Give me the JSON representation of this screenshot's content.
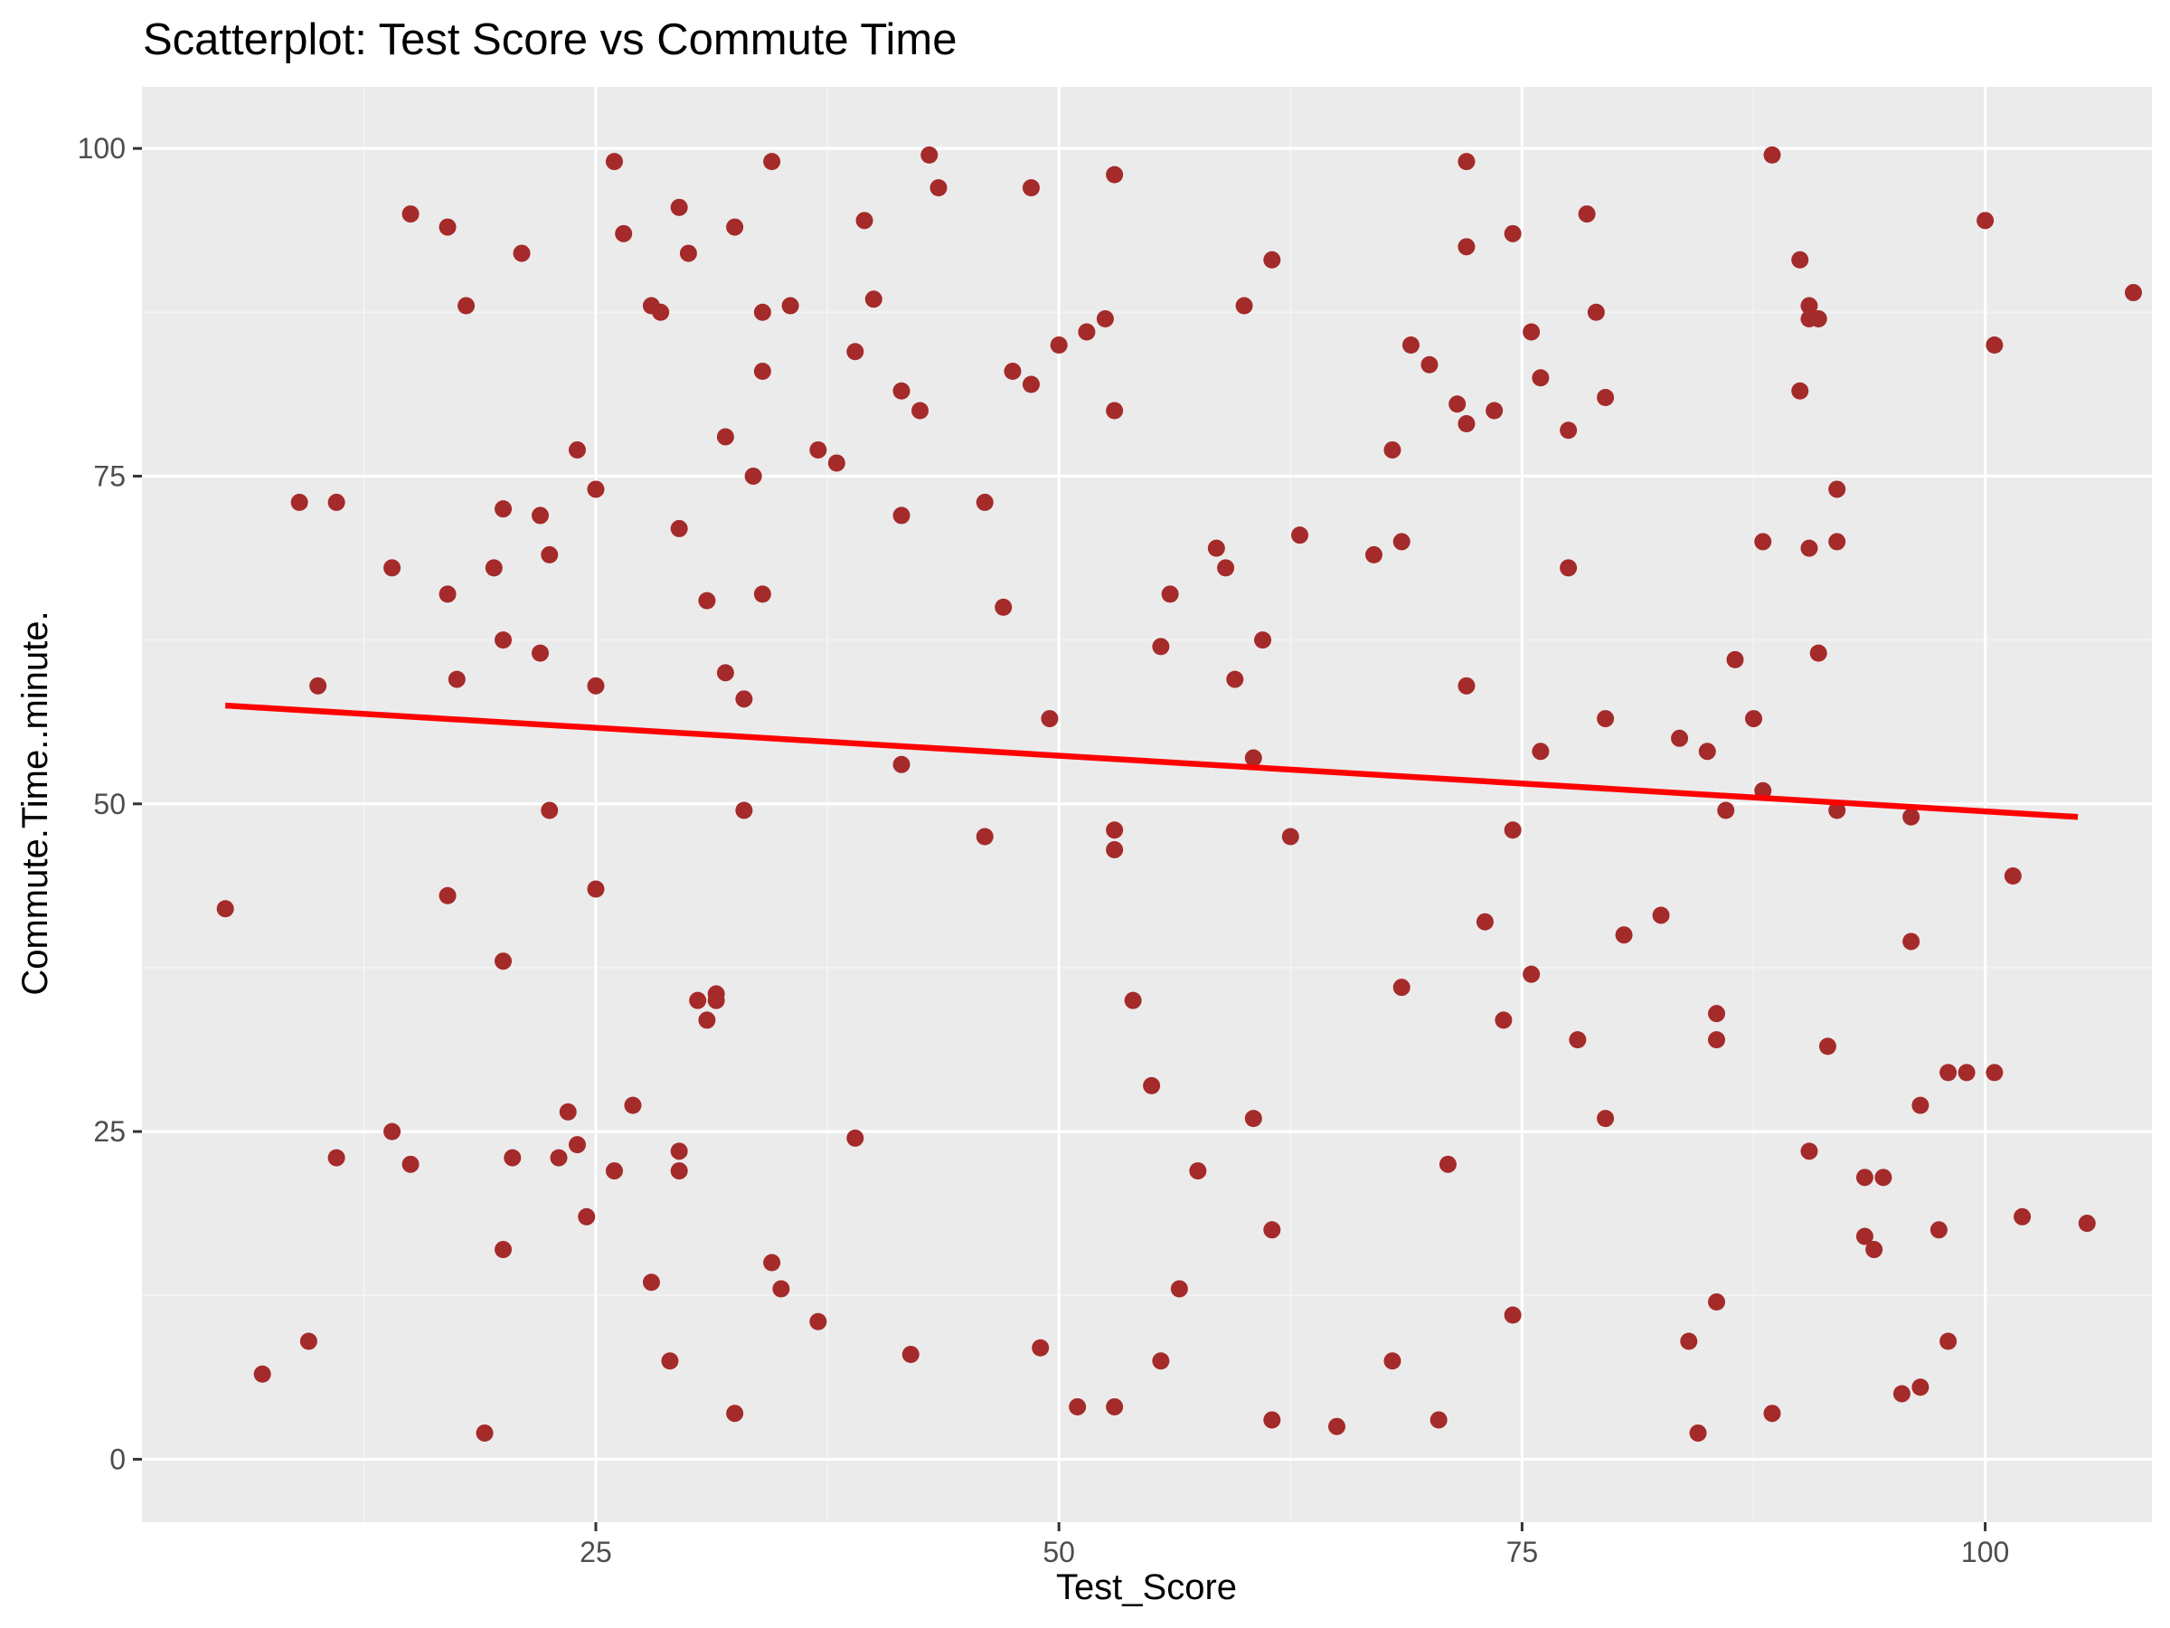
{
  "chart_data": {
    "type": "scatter",
    "title": "Scatterplot: Test Score vs Commute Time",
    "xlabel": "Test_Score",
    "ylabel": "Commute.Time..minute.",
    "xlim": [
      0.5,
      109.0
    ],
    "ylim": [
      -4.8,
      104.7
    ],
    "x_ticks": [
      25,
      50,
      75,
      100
    ],
    "x_tick_labels": [
      "25",
      "50",
      "75",
      "100"
    ],
    "y_ticks": [
      0,
      25,
      50,
      75,
      100
    ],
    "y_tick_labels": [
      "0",
      "25",
      "50",
      "75",
      "100"
    ],
    "grid": true,
    "legend": "none",
    "colors": {
      "panel": "#ebebeb",
      "grid_major": "#ffffff",
      "grid_minor": "#f4f4f4",
      "point": "#a52a2a",
      "trend": "#ff0000",
      "tick": "#333333"
    },
    "trend_line": {
      "x": [
        5.0,
        105.0
      ],
      "y": [
        57.5,
        49.0
      ]
    },
    "points": [
      [
        5,
        42
      ],
      [
        7,
        6.5
      ],
      [
        9,
        73
      ],
      [
        9.5,
        9
      ],
      [
        10,
        59
      ],
      [
        11,
        73
      ],
      [
        11,
        23
      ],
      [
        14,
        25
      ],
      [
        14,
        68
      ],
      [
        15,
        95
      ],
      [
        15,
        22.5
      ],
      [
        17,
        43
      ],
      [
        17,
        66
      ],
      [
        17,
        94
      ],
      [
        17.5,
        59.5
      ],
      [
        18,
        88
      ],
      [
        19,
        2
      ],
      [
        19.5,
        68
      ],
      [
        20,
        16
      ],
      [
        20,
        38
      ],
      [
        20,
        72.5
      ],
      [
        20,
        62.5
      ],
      [
        20.5,
        23
      ],
      [
        21,
        92
      ],
      [
        22,
        72
      ],
      [
        22,
        61.5
      ],
      [
        22.5,
        49.5
      ],
      [
        22.5,
        69
      ],
      [
        23,
        23
      ],
      [
        23.5,
        26.5
      ],
      [
        24,
        77
      ],
      [
        24,
        24
      ],
      [
        24.5,
        18.5
      ],
      [
        25,
        74
      ],
      [
        25,
        59
      ],
      [
        25,
        43.5
      ],
      [
        26,
        99
      ],
      [
        26,
        22
      ],
      [
        26.5,
        93.5
      ],
      [
        27,
        27
      ],
      [
        28,
        88
      ],
      [
        28,
        13.5
      ],
      [
        28.5,
        87.5
      ],
      [
        29,
        7.5
      ],
      [
        29.5,
        95.5
      ],
      [
        29.5,
        23.5
      ],
      [
        29.5,
        22
      ],
      [
        29.5,
        71
      ],
      [
        30,
        92
      ],
      [
        30.5,
        35
      ],
      [
        31,
        65.5
      ],
      [
        31,
        33.5
      ],
      [
        31.5,
        35.5
      ],
      [
        31.5,
        35
      ],
      [
        32,
        60
      ],
      [
        32,
        78
      ],
      [
        32.5,
        94
      ],
      [
        32.5,
        3.5
      ],
      [
        33,
        49.5
      ],
      [
        33,
        58
      ],
      [
        33.5,
        75
      ],
      [
        34,
        87.5
      ],
      [
        34,
        83
      ],
      [
        34,
        66
      ],
      [
        34.5,
        15
      ],
      [
        34.5,
        99
      ],
      [
        35,
        13
      ],
      [
        35.5,
        88
      ],
      [
        37,
        77
      ],
      [
        37,
        10.5
      ],
      [
        38,
        76
      ],
      [
        39,
        24.5
      ],
      [
        39,
        84.5
      ],
      [
        39.5,
        94.5
      ],
      [
        40,
        88.5
      ],
      [
        41.5,
        81.5
      ],
      [
        41.5,
        53
      ],
      [
        41.5,
        72
      ],
      [
        42,
        8
      ],
      [
        42.5,
        80
      ],
      [
        43,
        99.5
      ],
      [
        43.5,
        97
      ],
      [
        46,
        73
      ],
      [
        46,
        47.5
      ],
      [
        47,
        65
      ],
      [
        47.5,
        83
      ],
      [
        48.5,
        97
      ],
      [
        48.5,
        82
      ],
      [
        49,
        8.5
      ],
      [
        49.5,
        56.5
      ],
      [
        50,
        85
      ],
      [
        51,
        4
      ],
      [
        51.5,
        86
      ],
      [
        52.5,
        87
      ],
      [
        53,
        80
      ],
      [
        53,
        48
      ],
      [
        53,
        98
      ],
      [
        53,
        4
      ],
      [
        53,
        46.5
      ],
      [
        54,
        35
      ],
      [
        55,
        28.5
      ],
      [
        55.5,
        7.5
      ],
      [
        55.5,
        62
      ],
      [
        56,
        66
      ],
      [
        56.5,
        13
      ],
      [
        57.5,
        22
      ],
      [
        58.5,
        69.5
      ],
      [
        59,
        68
      ],
      [
        59.5,
        59.5
      ],
      [
        60,
        88
      ],
      [
        60.5,
        26
      ],
      [
        60.5,
        53.5
      ],
      [
        61,
        62.5
      ],
      [
        61.5,
        17.5
      ],
      [
        61.5,
        91.5
      ],
      [
        61.5,
        3
      ],
      [
        62.5,
        47.5
      ],
      [
        63,
        70.5
      ],
      [
        65,
        2.5
      ],
      [
        67,
        69
      ],
      [
        68,
        77
      ],
      [
        68,
        7.5
      ],
      [
        68.5,
        70
      ],
      [
        68.5,
        36
      ],
      [
        69,
        85
      ],
      [
        70,
        83.5
      ],
      [
        70.5,
        3
      ],
      [
        71,
        22.5
      ],
      [
        71.5,
        80.5
      ],
      [
        72,
        59
      ],
      [
        72,
        79
      ],
      [
        72,
        92.5
      ],
      [
        72,
        99
      ],
      [
        73,
        41
      ],
      [
        73.5,
        80
      ],
      [
        74,
        33.5
      ],
      [
        74.5,
        93.5
      ],
      [
        74.5,
        48
      ],
      [
        74.5,
        11
      ],
      [
        75.5,
        86
      ],
      [
        75.5,
        37
      ],
      [
        76,
        54
      ],
      [
        76,
        82.5
      ],
      [
        77.5,
        78.5
      ],
      [
        77.5,
        68
      ],
      [
        78,
        32
      ],
      [
        78.5,
        95
      ],
      [
        79,
        87.5
      ],
      [
        79.5,
        56.5
      ],
      [
        79.5,
        81
      ],
      [
        79.5,
        26
      ],
      [
        80.5,
        40
      ],
      [
        82.5,
        41.5
      ],
      [
        83.5,
        55
      ],
      [
        84,
        9
      ],
      [
        84.5,
        2
      ],
      [
        85,
        54
      ],
      [
        85.5,
        34
      ],
      [
        85.5,
        12
      ],
      [
        85.5,
        32
      ],
      [
        86,
        49.5
      ],
      [
        86.5,
        61
      ],
      [
        87.5,
        56.5
      ],
      [
        88,
        51
      ],
      [
        88,
        70
      ],
      [
        88.5,
        99.5
      ],
      [
        88.5,
        3.5
      ],
      [
        90,
        81.5
      ],
      [
        90,
        91.5
      ],
      [
        90.5,
        23.5
      ],
      [
        90.5,
        69.5
      ],
      [
        90.5,
        87
      ],
      [
        90.5,
        88
      ],
      [
        91,
        61.5
      ],
      [
        91,
        87
      ],
      [
        91.5,
        31.5
      ],
      [
        92,
        70
      ],
      [
        92,
        74
      ],
      [
        92,
        49.5
      ],
      [
        93.5,
        17
      ],
      [
        93.5,
        21.5
      ],
      [
        94,
        16
      ],
      [
        94.5,
        21.5
      ],
      [
        95.5,
        5
      ],
      [
        96,
        49
      ],
      [
        96,
        39.5
      ],
      [
        96.5,
        27
      ],
      [
        96.5,
        5.5
      ],
      [
        97.5,
        17.5
      ],
      [
        98,
        29.5
      ],
      [
        98,
        9
      ],
      [
        99,
        29.5
      ],
      [
        100,
        94.5
      ],
      [
        100.5,
        29.5
      ],
      [
        100.5,
        85
      ],
      [
        101.5,
        44.5
      ],
      [
        102,
        18.5
      ],
      [
        105.5,
        18
      ],
      [
        108,
        89
      ]
    ]
  }
}
